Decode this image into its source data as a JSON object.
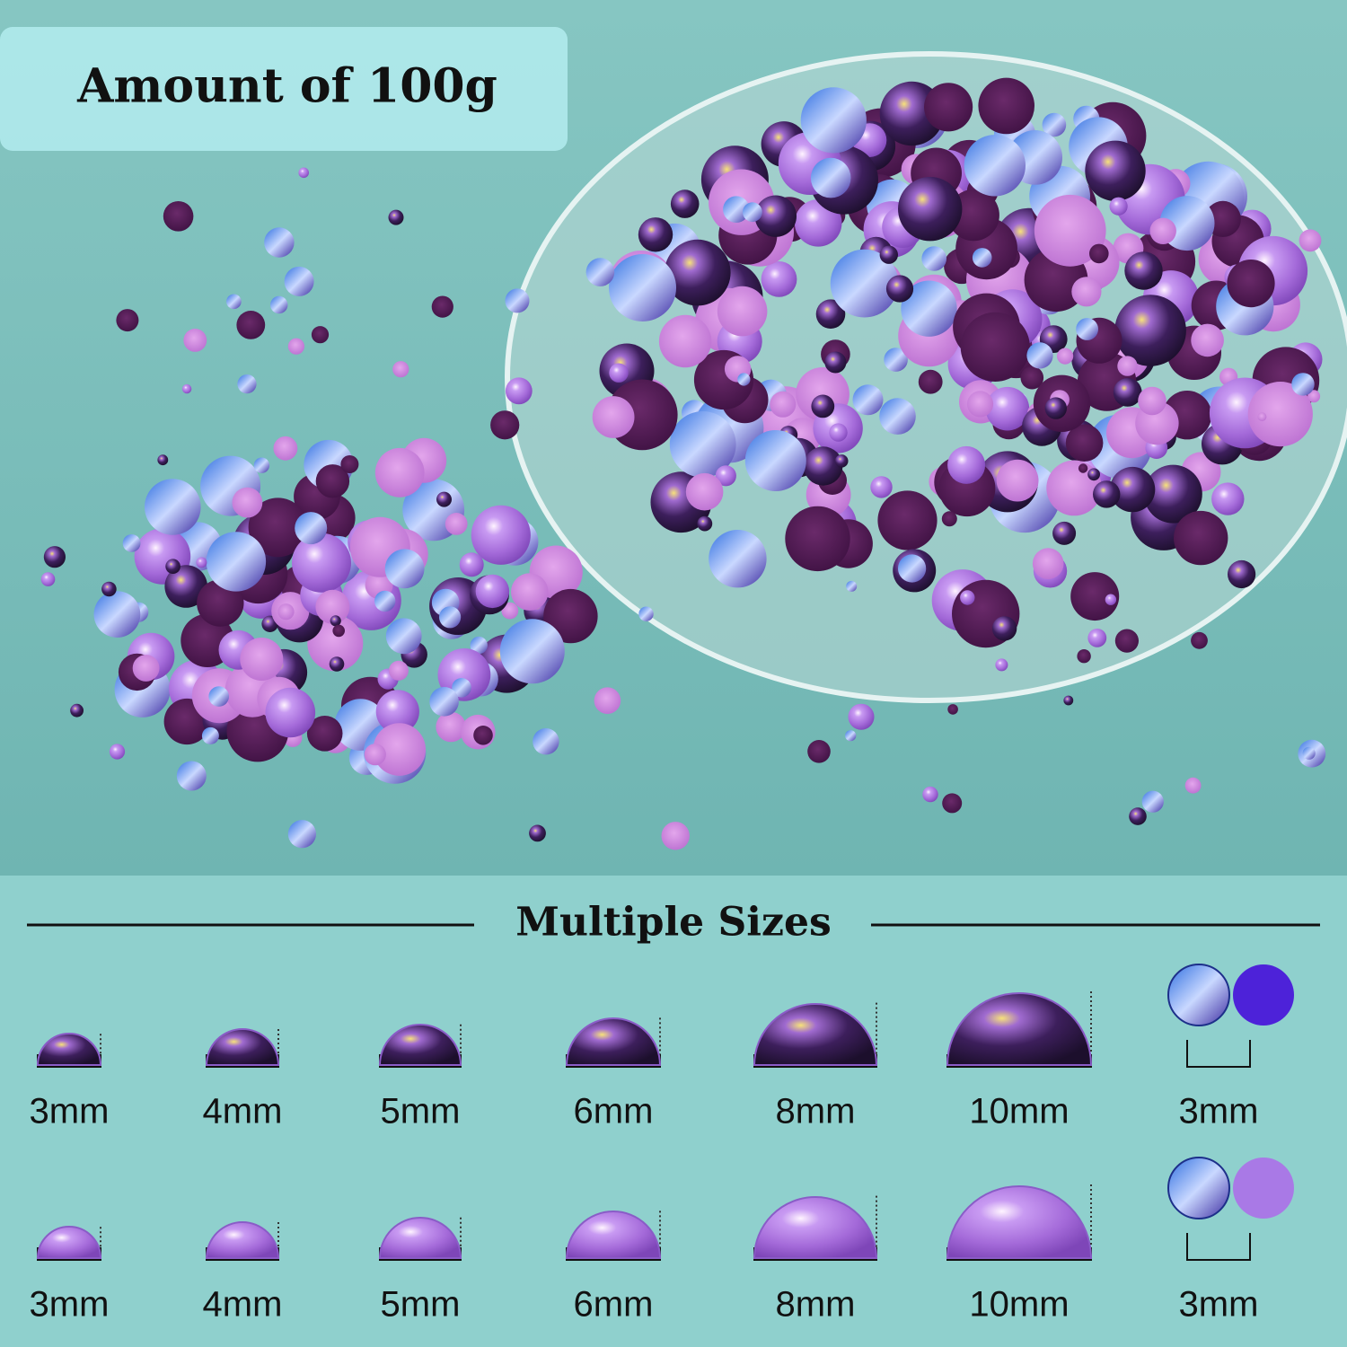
{
  "badge": {
    "title": "Amount of 100g"
  },
  "section": {
    "title": "Multiple Sizes",
    "rows": [
      {
        "labels": [
          "3mm",
          "4mm",
          "5mm",
          "6mm",
          "8mm",
          "10mm",
          "3mm"
        ]
      },
      {
        "labels": [
          "3mm",
          "4mm",
          "5mm",
          "6mm",
          "8mm",
          "10mm",
          "3mm"
        ]
      }
    ]
  }
}
